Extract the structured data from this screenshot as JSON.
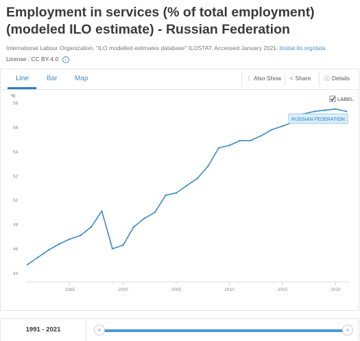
{
  "title": "Employment in services (% of total employment) (modeled ILO estimate) - Russian Federation",
  "source": {
    "text": "International Labour Organization. \"ILO modelled estimates database\" ILOSTAT. Accessed January 2021.",
    "link": "ilostat.ilo.org/data"
  },
  "license": {
    "label": "License :",
    "value": "CC BY-4.0"
  },
  "tabs": [
    {
      "label": "Line",
      "active": true
    },
    {
      "label": "Bar",
      "active": false
    },
    {
      "label": "Map",
      "active": false
    }
  ],
  "toolbar": {
    "also_show": "Also Show",
    "share": "Share",
    "details": "Details"
  },
  "label_toggle": {
    "text": "LABEL",
    "checked": true
  },
  "range": {
    "label": "1991 - 2021"
  },
  "colors": {
    "line": "#3a8ac4",
    "accent": "#2a7fc0",
    "tag_bg": "#dbeefa",
    "tag_border": "#9ccbec"
  },
  "chart_data": {
    "type": "line",
    "ylabel": "%",
    "ylim": [
      44,
      58
    ],
    "yticks": [
      44,
      46,
      48,
      50,
      52,
      54,
      56,
      58
    ],
    "xlim": [
      1991,
      2021
    ],
    "xticks": [
      1995,
      2000,
      2005,
      2010,
      2015,
      2020
    ],
    "series": [
      {
        "name": "RUSSIAN FEDERATION",
        "x": [
          1991,
          1992,
          1993,
          1994,
          1995,
          1996,
          1997,
          1998,
          1999,
          2000,
          2001,
          2002,
          2003,
          2004,
          2005,
          2006,
          2007,
          2008,
          2009,
          2010,
          2011,
          2012,
          2013,
          2014,
          2015,
          2016,
          2017,
          2018,
          2019,
          2020,
          2021
        ],
        "values": [
          44.7,
          45.3,
          45.9,
          46.4,
          46.8,
          47.1,
          47.8,
          49.1,
          46.0,
          46.3,
          47.8,
          48.5,
          49.0,
          50.4,
          50.6,
          51.2,
          51.8,
          52.8,
          54.3,
          54.5,
          54.9,
          54.9,
          55.3,
          55.8,
          56.1,
          56.4,
          57.1,
          57.3,
          57.4,
          57.5,
          57.3
        ]
      }
    ]
  }
}
